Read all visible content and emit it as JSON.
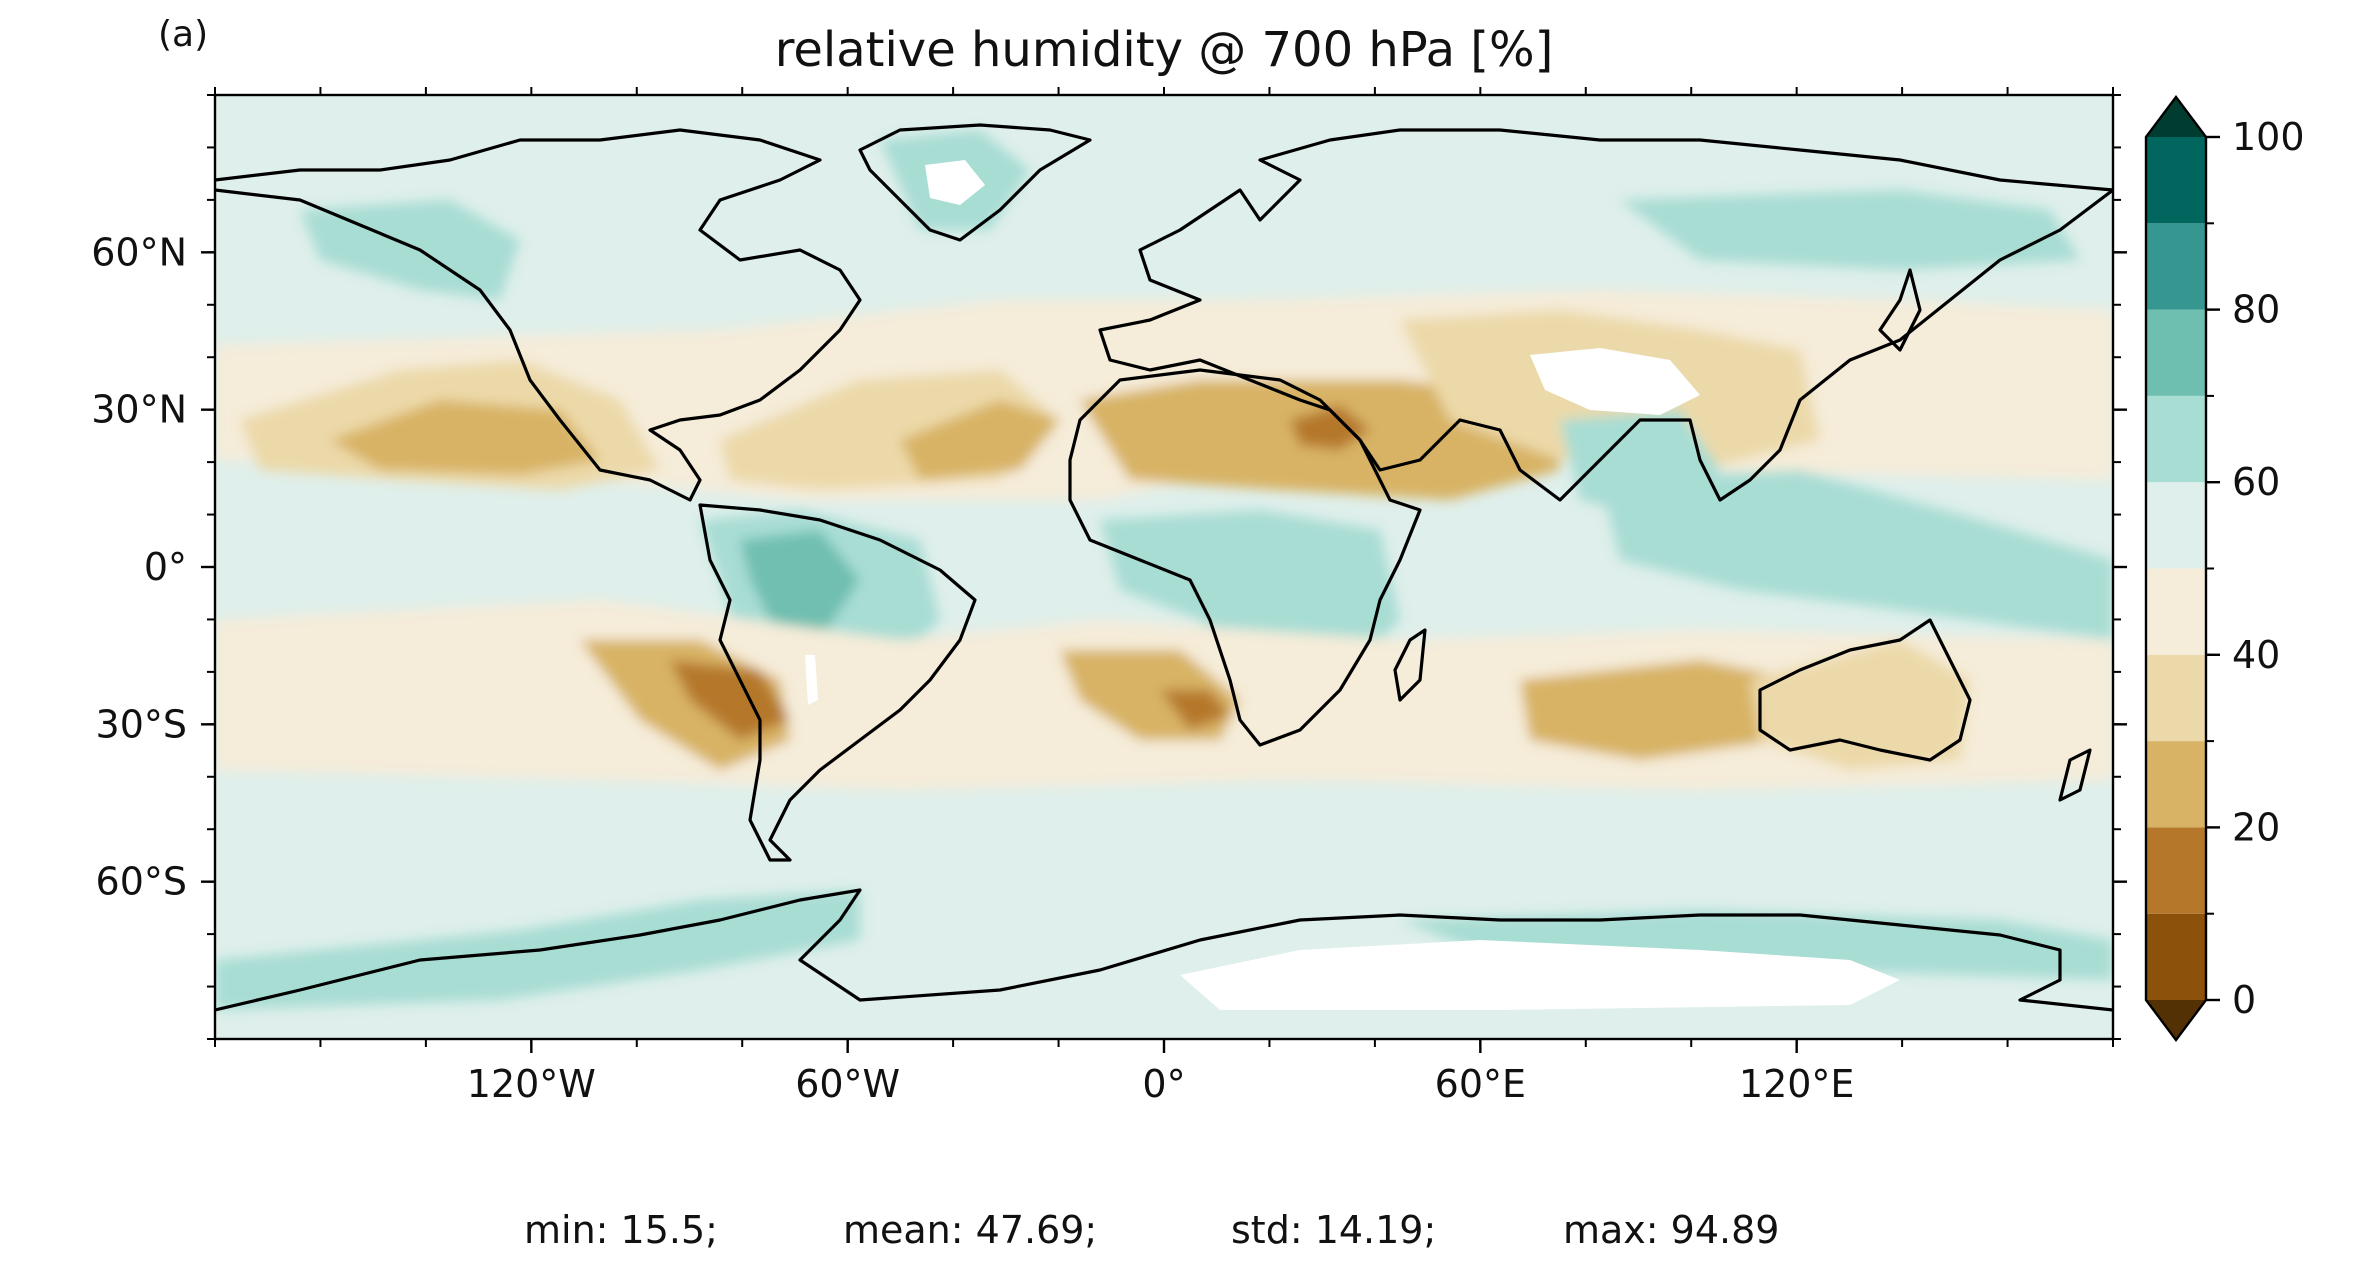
{
  "panel_label": "(a)",
  "title": "relative humidity @ 700 hPa [%]",
  "map": {
    "projection": "PlateCarree",
    "lon_range": [
      -180,
      180
    ],
    "lat_range": [
      -90,
      90
    ],
    "lon_ticks": [
      {
        "value": -120,
        "label": "120°W"
      },
      {
        "value": -60,
        "label": "60°W"
      },
      {
        "value": 0,
        "label": "0°"
      },
      {
        "value": 60,
        "label": "60°E"
      },
      {
        "value": 120,
        "label": "120°E"
      }
    ],
    "lat_ticks": [
      {
        "value": 60,
        "label": "60°N"
      },
      {
        "value": 30,
        "label": "30°N"
      },
      {
        "value": 0,
        "label": "0°"
      },
      {
        "value": -30,
        "label": "30°S"
      },
      {
        "value": -60,
        "label": "60°S"
      }
    ],
    "colors": {
      "ocean_base": "#dfefeb",
      "missing": "#ffffff",
      "coastline": "#000000"
    }
  },
  "colorbar": {
    "colormap": "BrBG",
    "extend": "both",
    "boundaries": [
      0,
      10,
      20,
      30,
      40,
      50,
      60,
      70,
      80,
      90,
      100
    ],
    "colors": [
      "#8c510a",
      "#b5782a",
      "#d8b365",
      "#ecd9a9",
      "#f5ecd9",
      "#dfefeb",
      "#a8ddd4",
      "#6fbfb0",
      "#35978f",
      "#01665e"
    ],
    "under_color": "#543005",
    "over_color": "#003c30",
    "tick_labels": [
      {
        "value": 0,
        "label": "0"
      },
      {
        "value": 20,
        "label": "20"
      },
      {
        "value": 40,
        "label": "40"
      },
      {
        "value": 60,
        "label": "60"
      },
      {
        "value": 80,
        "label": "80"
      },
      {
        "value": 100,
        "label": "100"
      }
    ]
  },
  "stats": {
    "min": "min: 15.5;",
    "mean": "mean: 47.69;",
    "std": "std: 14.19;",
    "max": "max: 94.89"
  }
}
